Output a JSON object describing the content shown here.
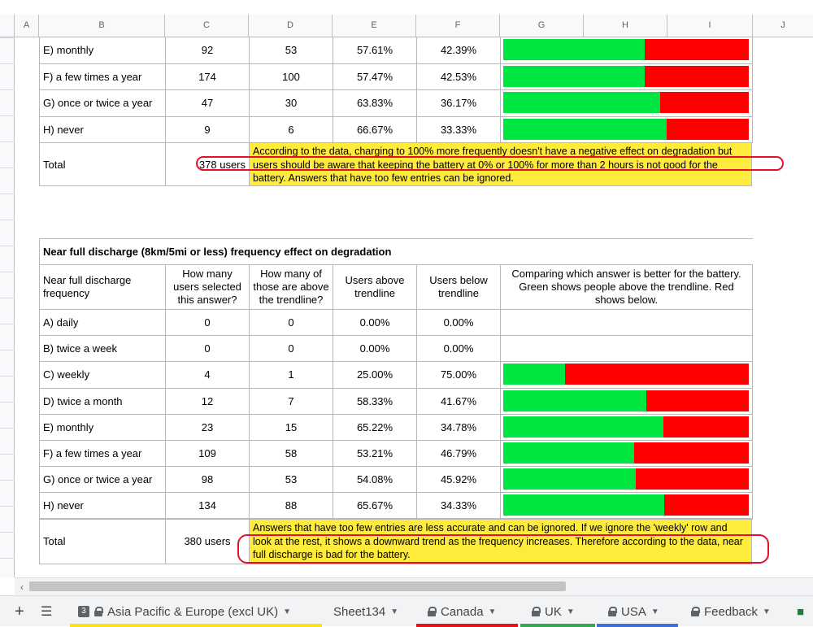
{
  "columns": [
    "A",
    "B",
    "C",
    "D",
    "E",
    "F",
    "G",
    "H",
    "I",
    "J"
  ],
  "table1": {
    "rows": [
      {
        "label": "E) monthly",
        "count": "92",
        "above": "53",
        "pct_above": "57.61%",
        "pct_below": "42.39%",
        "green": 0.5761
      },
      {
        "label": "F) a few times a year",
        "count": "174",
        "above": "100",
        "pct_above": "57.47%",
        "pct_below": "42.53%",
        "green": 0.5747
      },
      {
        "label": "G) once or twice a year",
        "count": "47",
        "above": "30",
        "pct_above": "63.83%",
        "pct_below": "36.17%",
        "green": 0.6383
      },
      {
        "label": "H) never",
        "count": "9",
        "above": "6",
        "pct_above": "66.67%",
        "pct_below": "33.33%",
        "green": 0.6667
      }
    ],
    "total_label": "Total",
    "total_value": "378 users",
    "note": "According to the data, charging to 100% more frequently doesn't have a negative effect on degradation but users should be aware that keeping the battery at 0% or 100% for more than 2 hours is not good for the battery. Answers that have too few entries can be ignored."
  },
  "table2": {
    "title": "Near full discharge (8km/5mi or less) frequency effect on degradation",
    "headers": {
      "label": "Near full discharge frequency",
      "count": "How many users selected this answer?",
      "above": "How many of those are above the trendline?",
      "pct_above": "Users above trendline",
      "pct_below": "Users below trendline",
      "compare": "Comparing which answer is better for the battery. Green shows people above the trendline. Red shows below."
    },
    "rows": [
      {
        "label": "A) daily",
        "count": "0",
        "above": "0",
        "pct_above": "0.00%",
        "pct_below": "0.00%",
        "green": null
      },
      {
        "label": "B) twice a week",
        "count": "0",
        "above": "0",
        "pct_above": "0.00%",
        "pct_below": "0.00%",
        "green": null
      },
      {
        "label": "C) weekly",
        "count": "4",
        "above": "1",
        "pct_above": "25.00%",
        "pct_below": "75.00%",
        "green": 0.25
      },
      {
        "label": "D) twice a month",
        "count": "12",
        "above": "7",
        "pct_above": "58.33%",
        "pct_below": "41.67%",
        "green": 0.5833
      },
      {
        "label": "E) monthly",
        "count": "23",
        "above": "15",
        "pct_above": "65.22%",
        "pct_below": "34.78%",
        "green": 0.6522
      },
      {
        "label": "F) a few times a year",
        "count": "109",
        "above": "58",
        "pct_above": "53.21%",
        "pct_below": "46.79%",
        "green": 0.5321
      },
      {
        "label": "G) once or twice a year",
        "count": "98",
        "above": "53",
        "pct_above": "54.08%",
        "pct_below": "45.92%",
        "green": 0.5408
      },
      {
        "label": "H) never",
        "count": "134",
        "above": "88",
        "pct_above": "65.67%",
        "pct_below": "34.33%",
        "green": 0.6567
      }
    ],
    "total_label": "Total",
    "total_value": "380 users",
    "note": "Answers that have too few entries are less accurate and can be ignored. If we ignore the 'weekly' row and look at the rest, it shows a downward trend as the frequency increases. Therefore according to the data, near full discharge is bad for the battery."
  },
  "tabs": [
    {
      "label": "Asia Pacific & Europe (excl UK)",
      "badge": "3",
      "locked": true,
      "color": "#fbe214"
    },
    {
      "label": "Sheet134",
      "locked": false,
      "color": ""
    },
    {
      "label": "Canada",
      "locked": true,
      "color": "#e8101b"
    },
    {
      "label": "UK",
      "locked": true,
      "color": "#35a853"
    },
    {
      "label": "USA",
      "locked": true,
      "color": "#3f6fd8"
    },
    {
      "label": "Feedback",
      "locked": true,
      "color": ""
    }
  ],
  "colors": {
    "green": "#00e640",
    "red": "#ff0000",
    "note_bg": "#ffeb3b"
  }
}
